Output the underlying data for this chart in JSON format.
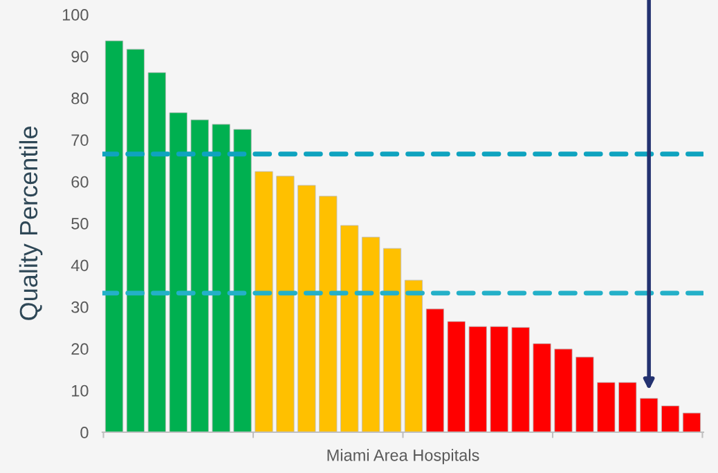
{
  "chart_data": {
    "type": "bar",
    "xlabel": "Miami Area Hospitals",
    "ylabel": "Quality Percentile",
    "categories": [
      null,
      null,
      null,
      null,
      null,
      null,
      null,
      null,
      null,
      null,
      null,
      null,
      null,
      null,
      null,
      null,
      null,
      null,
      null,
      null,
      null,
      null,
      null,
      null,
      null,
      null,
      null,
      null
    ],
    "values": [
      93.7,
      91.7,
      86.1,
      76.5,
      74.8,
      73.7,
      72.5,
      62.4,
      61.3,
      59.1,
      56.5,
      49.5,
      46.7,
      44.0,
      36.4,
      29.5,
      26.5,
      25.3,
      25.3,
      25.1,
      21.2,
      19.9,
      18.0,
      11.9,
      11.9,
      8.1,
      6.3,
      4.6
    ],
    "colors": [
      "#00b050",
      "#00b050",
      "#00b050",
      "#00b050",
      "#00b050",
      "#00b050",
      "#00b050",
      "#ffc000",
      "#ffc000",
      "#ffc000",
      "#ffc000",
      "#ffc000",
      "#ffc000",
      "#ffc000",
      "#ffc000",
      "#ff0000",
      "#ff0000",
      "#ff0000",
      "#ff0000",
      "#ff0000",
      "#ff0000",
      "#ff0000",
      "#ff0000",
      "#ff0000",
      "#ff0000",
      "#ff0000",
      "#ff0000",
      "#ff0000"
    ],
    "ylim": [
      0,
      100
    ],
    "yticks": [
      0,
      10,
      20,
      30,
      40,
      50,
      60,
      70,
      80,
      90,
      100
    ],
    "grid": false,
    "legend": false,
    "ref_lines": [
      {
        "axis": "y",
        "value": 66.6,
        "color": "#0fa3bf",
        "line_style": "dashed"
      },
      {
        "axis": "y",
        "value": 33.3,
        "color": "#24b0c8",
        "line_style": "dashed"
      }
    ]
  }
}
